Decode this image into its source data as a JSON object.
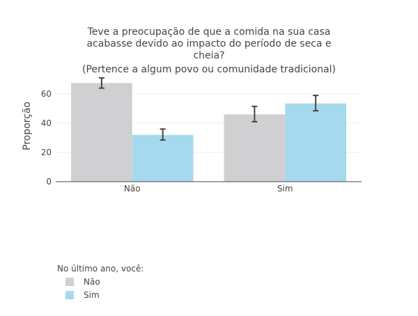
{
  "chart_data": {
    "type": "bar",
    "title_lines": [
      "Teve a preocupação de que a comida na sua casa",
      "acabasse devido ao impacto do período de seca e",
      "cheia?",
      "(Pertence a algum povo ou comunidade tradicional)"
    ],
    "xlabel": "",
    "ylabel": "Proporção",
    "categories": [
      "Não",
      "Sim"
    ],
    "ylim": [
      0,
      70
    ],
    "yticks": [
      0,
      20,
      40,
      60
    ],
    "grid": true,
    "legend_position": "bottom-left",
    "legend_title": "No último ano, você:",
    "error_bars": true,
    "series": [
      {
        "name": "Não",
        "color": "#d0d0d2",
        "values": [
          67.5,
          46
        ],
        "error_low": [
          64,
          41
        ],
        "error_high": [
          71,
          51.5
        ]
      },
      {
        "name": "Sim",
        "color": "#a6d8ee",
        "values": [
          32,
          53.5
        ],
        "error_low": [
          28.5,
          48.5
        ],
        "error_high": [
          36,
          59
        ]
      }
    ]
  }
}
